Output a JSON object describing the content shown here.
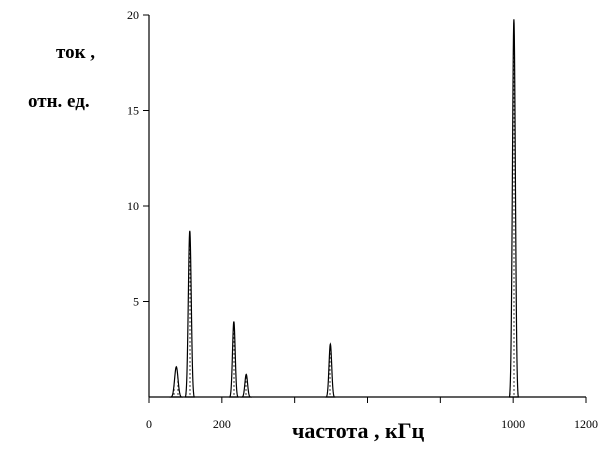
{
  "chart_data": {
    "type": "area",
    "title": "",
    "ylabel_lines": [
      "ток ,",
      "отн. ед."
    ],
    "xlabel": "частота , кГц",
    "xlim": [
      0,
      1200
    ],
    "ylim": [
      0,
      20
    ],
    "xticks": [
      0,
      200,
      1000,
      1200
    ],
    "xticks_unlabeled": [
      400,
      600,
      800
    ],
    "yticks": [
      5,
      10,
      15,
      20
    ],
    "grid": false,
    "peaks": [
      {
        "x": 75,
        "y": 1.6,
        "half_width": 14
      },
      {
        "x": 112,
        "y": 8.8,
        "half_width": 12
      },
      {
        "x": 233,
        "y": 4.0,
        "half_width": 11
      },
      {
        "x": 267,
        "y": 1.2,
        "half_width": 11
      },
      {
        "x": 498,
        "y": 2.8,
        "half_width": 11
      },
      {
        "x": 1002,
        "y": 20.0,
        "half_width": 12
      }
    ]
  }
}
